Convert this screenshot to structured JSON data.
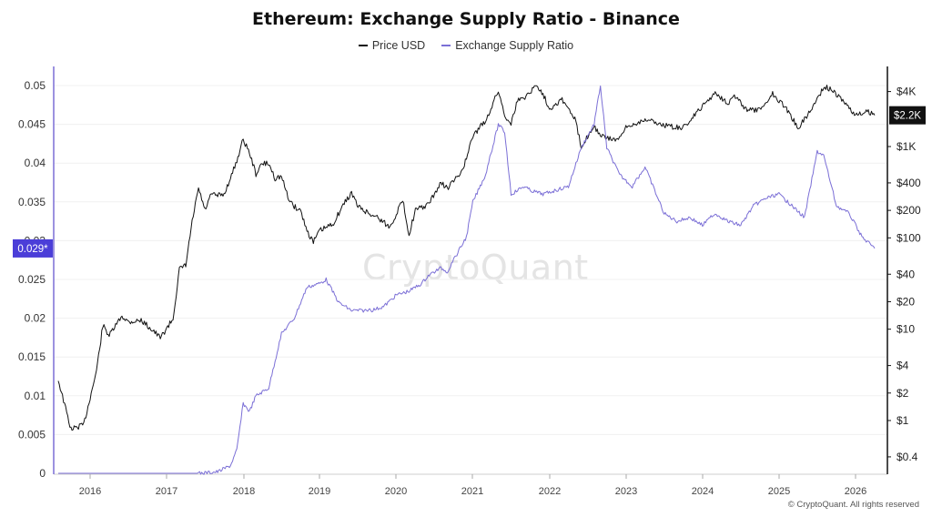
{
  "title": "Ethereum: Exchange Supply Ratio - Binance",
  "legend": {
    "price": "Price USD",
    "ratio": "Exchange Supply Ratio"
  },
  "watermark": "CryptoQuant",
  "footer": "© CryptoQuant. All rights reserved",
  "colors": {
    "price": "#111111",
    "ratio": "#7b6fd6",
    "current_badge": "#4b3ed8",
    "price_badge": "#111111",
    "left_axis": "#7b6fd6"
  },
  "chart_data": {
    "type": "line",
    "title": "Ethereum: Exchange Supply Ratio - Binance",
    "x_ticks": [
      "2016",
      "2017",
      "2018",
      "2019",
      "2020",
      "2021",
      "2022",
      "2023",
      "2024",
      "2025",
      "2026"
    ],
    "left_axis": {
      "ticks": [
        "0",
        "0.005",
        "0.01",
        "0.015",
        "0.02",
        "0.025",
        "0.03",
        "0.035",
        "0.04",
        "0.045",
        "0.05"
      ],
      "ylim": [
        0,
        0.05
      ]
    },
    "right_axis": {
      "scale": "log",
      "ticks": [
        "$0.4",
        "$1",
        "$2",
        "$4",
        "$10",
        "$20",
        "$40",
        "$100",
        "$200",
        "$400",
        "$1K",
        "$4K"
      ],
      "tick_values": [
        0.4,
        1,
        2,
        4,
        10,
        20,
        40,
        100,
        200,
        400,
        1000,
        4000
      ]
    },
    "current_ratio_label": "0.029*",
    "current_price_label": "$2.2K",
    "series": [
      {
        "name": "Price USD",
        "axis": "right",
        "points": [
          [
            "2015-08",
            2.8
          ],
          [
            "2015-10",
            0.8
          ],
          [
            "2015-12",
            0.9
          ],
          [
            "2016-02",
            3.5
          ],
          [
            "2016-03",
            11
          ],
          [
            "2016-04",
            8.5
          ],
          [
            "2016-06",
            14
          ],
          [
            "2016-07",
            12
          ],
          [
            "2016-09",
            12.5
          ],
          [
            "2016-11",
            9.5
          ],
          [
            "2016-12",
            8
          ],
          [
            "2017-02",
            13
          ],
          [
            "2017-03",
            45
          ],
          [
            "2017-04",
            50
          ],
          [
            "2017-05",
            150
          ],
          [
            "2017-06",
            350
          ],
          [
            "2017-07",
            200
          ],
          [
            "2017-08",
            300
          ],
          [
            "2017-09",
            290
          ],
          [
            "2017-10",
            300
          ],
          [
            "2017-11",
            450
          ],
          [
            "2017-12",
            700
          ],
          [
            "2018-01",
            1200
          ],
          [
            "2018-02",
            850
          ],
          [
            "2018-03",
            500
          ],
          [
            "2018-04",
            650
          ],
          [
            "2018-05",
            650
          ],
          [
            "2018-06",
            450
          ],
          [
            "2018-07",
            470
          ],
          [
            "2018-08",
            280
          ],
          [
            "2018-09",
            220
          ],
          [
            "2018-10",
            200
          ],
          [
            "2018-11",
            120
          ],
          [
            "2018-12",
            90
          ],
          [
            "2019-01",
            120
          ],
          [
            "2019-03",
            140
          ],
          [
            "2019-05",
            250
          ],
          [
            "2019-06",
            310
          ],
          [
            "2019-07",
            220
          ],
          [
            "2019-09",
            180
          ],
          [
            "2019-10",
            170
          ],
          [
            "2019-12",
            130
          ],
          [
            "2020-02",
            260
          ],
          [
            "2020-03",
            110
          ],
          [
            "2020-04",
            200
          ],
          [
            "2020-06",
            230
          ],
          [
            "2020-08",
            400
          ],
          [
            "2020-09",
            350
          ],
          [
            "2020-11",
            500
          ],
          [
            "2020-12",
            730
          ],
          [
            "2021-01",
            1300
          ],
          [
            "2021-02",
            1600
          ],
          [
            "2021-03",
            1900
          ],
          [
            "2021-05",
            4100
          ],
          [
            "2021-06",
            2200
          ],
          [
            "2021-07",
            1800
          ],
          [
            "2021-08",
            3200
          ],
          [
            "2021-09",
            3400
          ],
          [
            "2021-11",
            4700
          ],
          [
            "2021-12",
            3800
          ],
          [
            "2022-01",
            2600
          ],
          [
            "2022-03",
            3300
          ],
          [
            "2022-05",
            2000
          ],
          [
            "2022-06",
            1000
          ],
          [
            "2022-08",
            1700
          ],
          [
            "2022-09",
            1300
          ],
          [
            "2022-11",
            1200
          ],
          [
            "2022-12",
            1200
          ],
          [
            "2023-01",
            1600
          ],
          [
            "2023-04",
            2000
          ],
          [
            "2023-06",
            1800
          ],
          [
            "2023-08",
            1650
          ],
          [
            "2023-10",
            1600
          ],
          [
            "2023-12",
            2300
          ],
          [
            "2024-03",
            3900
          ],
          [
            "2024-05",
            3000
          ],
          [
            "2024-06",
            3600
          ],
          [
            "2024-08",
            2500
          ],
          [
            "2024-10",
            2500
          ],
          [
            "2024-12",
            3800
          ],
          [
            "2025-02",
            2700
          ],
          [
            "2025-04",
            1600
          ],
          [
            "2025-06",
            2500
          ],
          [
            "2025-08",
            4500
          ],
          [
            "2025-09",
            4300
          ],
          [
            "2025-11",
            3200
          ],
          [
            "2026-01",
            2200
          ],
          [
            "2026-03",
            2400
          ],
          [
            "2026-04",
            2200
          ]
        ]
      },
      {
        "name": "Exchange Supply Ratio",
        "axis": "left",
        "points": [
          [
            "2015-08",
            0
          ],
          [
            "2017-06",
            0
          ],
          [
            "2017-09",
            0.0002
          ],
          [
            "2017-11",
            0.001
          ],
          [
            "2017-12",
            0.003
          ],
          [
            "2018-01",
            0.009
          ],
          [
            "2018-02",
            0.008
          ],
          [
            "2018-03",
            0.01
          ],
          [
            "2018-05",
            0.011
          ],
          [
            "2018-07",
            0.018
          ],
          [
            "2018-09",
            0.02
          ],
          [
            "2018-11",
            0.024
          ],
          [
            "2019-01",
            0.0245
          ],
          [
            "2019-02",
            0.025
          ],
          [
            "2019-04",
            0.022
          ],
          [
            "2019-06",
            0.021
          ],
          [
            "2019-09",
            0.021
          ],
          [
            "2019-11",
            0.0215
          ],
          [
            "2020-01",
            0.023
          ],
          [
            "2020-03",
            0.0235
          ],
          [
            "2020-05",
            0.0245
          ],
          [
            "2020-06",
            0.0255
          ],
          [
            "2020-08",
            0.0265
          ],
          [
            "2020-09",
            0.026
          ],
          [
            "2020-11",
            0.029
          ],
          [
            "2020-12",
            0.0305
          ],
          [
            "2021-01",
            0.035
          ],
          [
            "2021-03",
            0.0385
          ],
          [
            "2021-05",
            0.045
          ],
          [
            "2021-06",
            0.044
          ],
          [
            "2021-07",
            0.036
          ],
          [
            "2021-09",
            0.037
          ],
          [
            "2021-10",
            0.0365
          ],
          [
            "2021-12",
            0.036
          ],
          [
            "2022-02",
            0.0365
          ],
          [
            "2022-04",
            0.037
          ],
          [
            "2022-06",
            0.042
          ],
          [
            "2022-08",
            0.045
          ],
          [
            "2022-09",
            0.05
          ],
          [
            "2022-10",
            0.042
          ],
          [
            "2022-12",
            0.0385
          ],
          [
            "2023-02",
            0.037
          ],
          [
            "2023-04",
            0.0395
          ],
          [
            "2023-05",
            0.0375
          ],
          [
            "2023-07",
            0.0335
          ],
          [
            "2023-09",
            0.0325
          ],
          [
            "2023-11",
            0.033
          ],
          [
            "2024-01",
            0.032
          ],
          [
            "2024-03",
            0.0335
          ],
          [
            "2024-05",
            0.0325
          ],
          [
            "2024-07",
            0.032
          ],
          [
            "2024-09",
            0.0345
          ],
          [
            "2024-11",
            0.0355
          ],
          [
            "2025-01",
            0.036
          ],
          [
            "2025-03",
            0.0345
          ],
          [
            "2025-05",
            0.033
          ],
          [
            "2025-07",
            0.0415
          ],
          [
            "2025-08",
            0.041
          ],
          [
            "2025-10",
            0.0345
          ],
          [
            "2025-12",
            0.0335
          ],
          [
            "2026-02",
            0.0305
          ],
          [
            "2026-04",
            0.029
          ]
        ]
      }
    ]
  }
}
